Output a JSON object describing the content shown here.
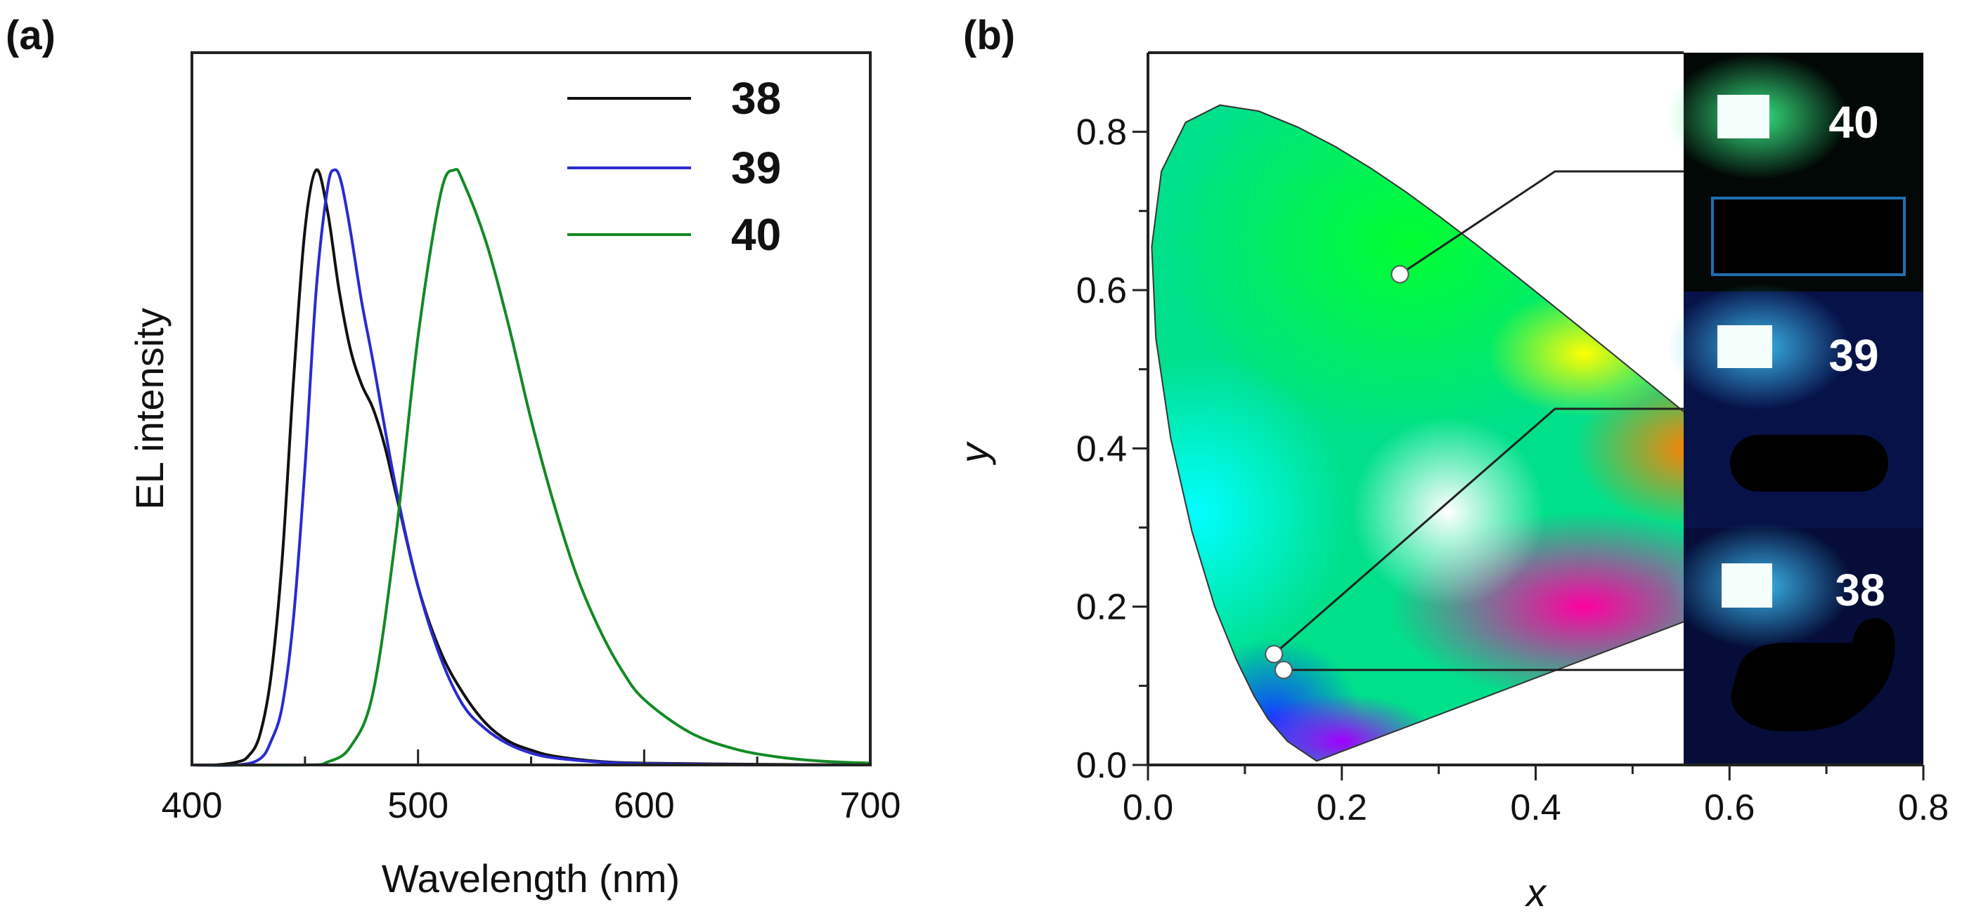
{
  "chart_data": [
    {
      "type": "line",
      "panel_label": "(a)",
      "xlabel": "Wavelength (nm)",
      "ylabel": "EL intensity",
      "xlim": [
        400,
        700
      ],
      "ylim": [
        0,
        1.0
      ],
      "xticks": [
        "400",
        "500",
        "600",
        "700"
      ],
      "xtick_values": [
        400,
        500,
        600,
        700
      ],
      "grid": false,
      "legend_position": "top-right",
      "series": [
        {
          "name": "38",
          "color": "#111111",
          "x": [
            400,
            410,
            420,
            425,
            430,
            435,
            440,
            445,
            450,
            455,
            460,
            465,
            470,
            475,
            480,
            485,
            490,
            500,
            510,
            520,
            530,
            540,
            550,
            560,
            580,
            600,
            650,
            700
          ],
          "y": [
            0,
            0,
            0.005,
            0.015,
            0.05,
            0.15,
            0.35,
            0.65,
            0.9,
            1.0,
            0.93,
            0.8,
            0.7,
            0.64,
            0.6,
            0.54,
            0.46,
            0.3,
            0.19,
            0.12,
            0.07,
            0.04,
            0.025,
            0.015,
            0.006,
            0.003,
            0.001,
            0
          ]
        },
        {
          "name": "39",
          "color": "#2a2ad0",
          "x": [
            400,
            420,
            430,
            435,
            440,
            445,
            450,
            455,
            460,
            463,
            466,
            470,
            475,
            480,
            490,
            500,
            510,
            520,
            530,
            540,
            550,
            560,
            580,
            600,
            650,
            700
          ],
          "y": [
            0,
            0,
            0.01,
            0.04,
            0.1,
            0.25,
            0.5,
            0.8,
            0.97,
            1.0,
            0.98,
            0.9,
            0.78,
            0.68,
            0.47,
            0.3,
            0.18,
            0.1,
            0.06,
            0.035,
            0.02,
            0.012,
            0.005,
            0.002,
            0,
            0
          ]
        },
        {
          "name": "40",
          "color": "#128a24",
          "x": [
            400,
            450,
            460,
            470,
            480,
            490,
            500,
            510,
            516,
            520,
            530,
            540,
            550,
            560,
            570,
            580,
            590,
            600,
            620,
            640,
            660,
            680,
            700
          ],
          "y": [
            0,
            0,
            0.005,
            0.03,
            0.12,
            0.38,
            0.72,
            0.96,
            1.0,
            0.98,
            0.88,
            0.74,
            0.58,
            0.44,
            0.32,
            0.23,
            0.16,
            0.11,
            0.055,
            0.027,
            0.013,
            0.006,
            0.003
          ]
        }
      ]
    },
    {
      "type": "scatter",
      "panel_label": "(b)",
      "xlabel": "x",
      "ylabel": "y",
      "xlim": [
        0,
        0.8
      ],
      "ylim": [
        0,
        0.9
      ],
      "xticks": [
        "0.0",
        "0.2",
        "0.4",
        "0.6",
        "0.8"
      ],
      "xtick_values": [
        0,
        0.2,
        0.4,
        0.6,
        0.8
      ],
      "yticks": [
        "0.0",
        "0.2",
        "0.4",
        "0.6",
        "0.8"
      ],
      "ytick_values": [
        0,
        0.2,
        0.4,
        0.6,
        0.8
      ],
      "grid": false,
      "points": [
        {
          "name": "40",
          "x": 0.26,
          "y": 0.62
        },
        {
          "name": "39",
          "x": 0.13,
          "y": 0.14
        },
        {
          "name": "38",
          "x": 0.14,
          "y": 0.12
        }
      ],
      "photos": [
        {
          "label": "40",
          "glow": "#7dffb0",
          "background": "#020805"
        },
        {
          "label": "39",
          "glow": "#bff4ff",
          "background": "#071248"
        },
        {
          "label": "38",
          "glow": "#c8f6ff",
          "background": "#050d38"
        }
      ]
    }
  ]
}
